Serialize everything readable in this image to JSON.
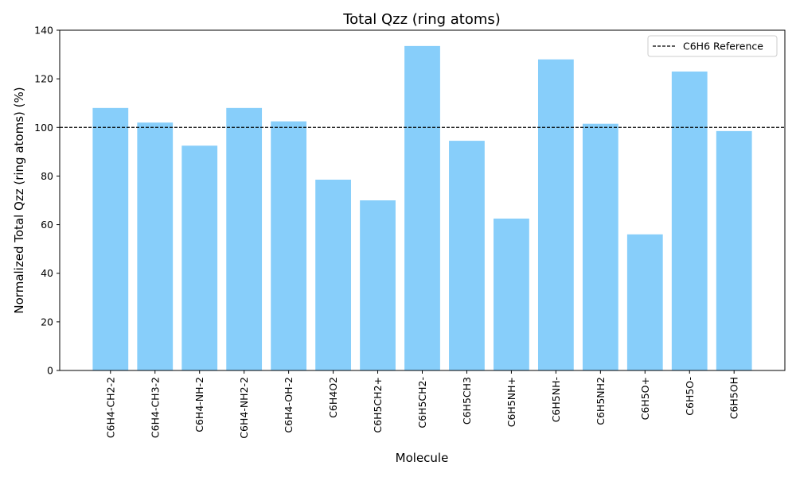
{
  "chart_data": {
    "type": "bar",
    "title": "Total Qzz (ring atoms)",
    "xlabel": "Molecule",
    "ylabel": "Normalized Total Qzz (ring atoms) (%)",
    "categories": [
      "C6H4-CH2-2",
      "C6H4-CH3-2",
      "C6H4-NH-2",
      "C6H4-NH2-2",
      "C6H4-OH-2",
      "C6H4O2",
      "C6H5CH2+",
      "C6H5CH2-",
      "C6H5CH3",
      "C6H5NH+",
      "C6H5NH-",
      "C6H5NH2",
      "C6H5O+",
      "C6H5O-",
      "C6H5OH"
    ],
    "values": [
      108,
      102,
      92.5,
      108,
      102.5,
      78.5,
      70,
      133.5,
      94.5,
      62.5,
      128,
      101.5,
      56,
      123,
      98.5
    ],
    "ylim": [
      0,
      140
    ],
    "yticks": [
      0,
      20,
      40,
      60,
      80,
      100,
      120,
      140
    ],
    "reference_line": {
      "value": 100,
      "label": "C6H6 Reference",
      "style": "dashed"
    },
    "legend_position": "top-right",
    "grid": false,
    "bar_color": "#87CEFA",
    "reference_color": "#000000"
  }
}
